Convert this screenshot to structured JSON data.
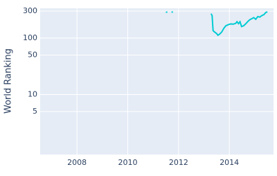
{
  "chart_data": {
    "type": "line",
    "y_label": "World Ranking",
    "x": [
      2011.5,
      2011.56,
      2011.64,
      2011.72,
      2011.78,
      2012.5,
      2013.28,
      2013.32,
      2013.36,
      2013.42,
      2013.5,
      2013.55,
      2013.62,
      2013.7,
      2013.78,
      2013.86,
      2013.95,
      2014.05,
      2014.15,
      2014.25,
      2014.3,
      2014.36,
      2014.42,
      2014.48,
      2014.56,
      2014.64,
      2014.72,
      2014.8,
      2014.88,
      2014.96,
      2015.04,
      2015.12,
      2015.2,
      2015.28,
      2015.36,
      2015.44,
      2015.5,
      2015.58,
      2015.64
    ],
    "series": [
      {
        "name": "World Ranking",
        "color": "#00cbd3",
        "values": [
          285,
          290,
          null,
          290,
          288,
          null,
          270,
          250,
          135,
          128,
          120,
          112,
          118,
          128,
          148,
          165,
          172,
          178,
          176,
          182,
          195,
          180,
          195,
          160,
          165,
          178,
          195,
          210,
          220,
          230,
          215,
          240,
          235,
          250,
          260,
          285,
          290,
          null,
          285
        ]
      }
    ],
    "xlim": [
      2006.55,
      2015.74
    ],
    "xticks": [
      2008,
      2010,
      2012,
      2014
    ],
    "ylim": [
      0.87,
      336
    ],
    "yticks": [
      5,
      10,
      50,
      100,
      300
    ],
    "log_y": true,
    "grid": true,
    "background": "#e5ecf6"
  }
}
